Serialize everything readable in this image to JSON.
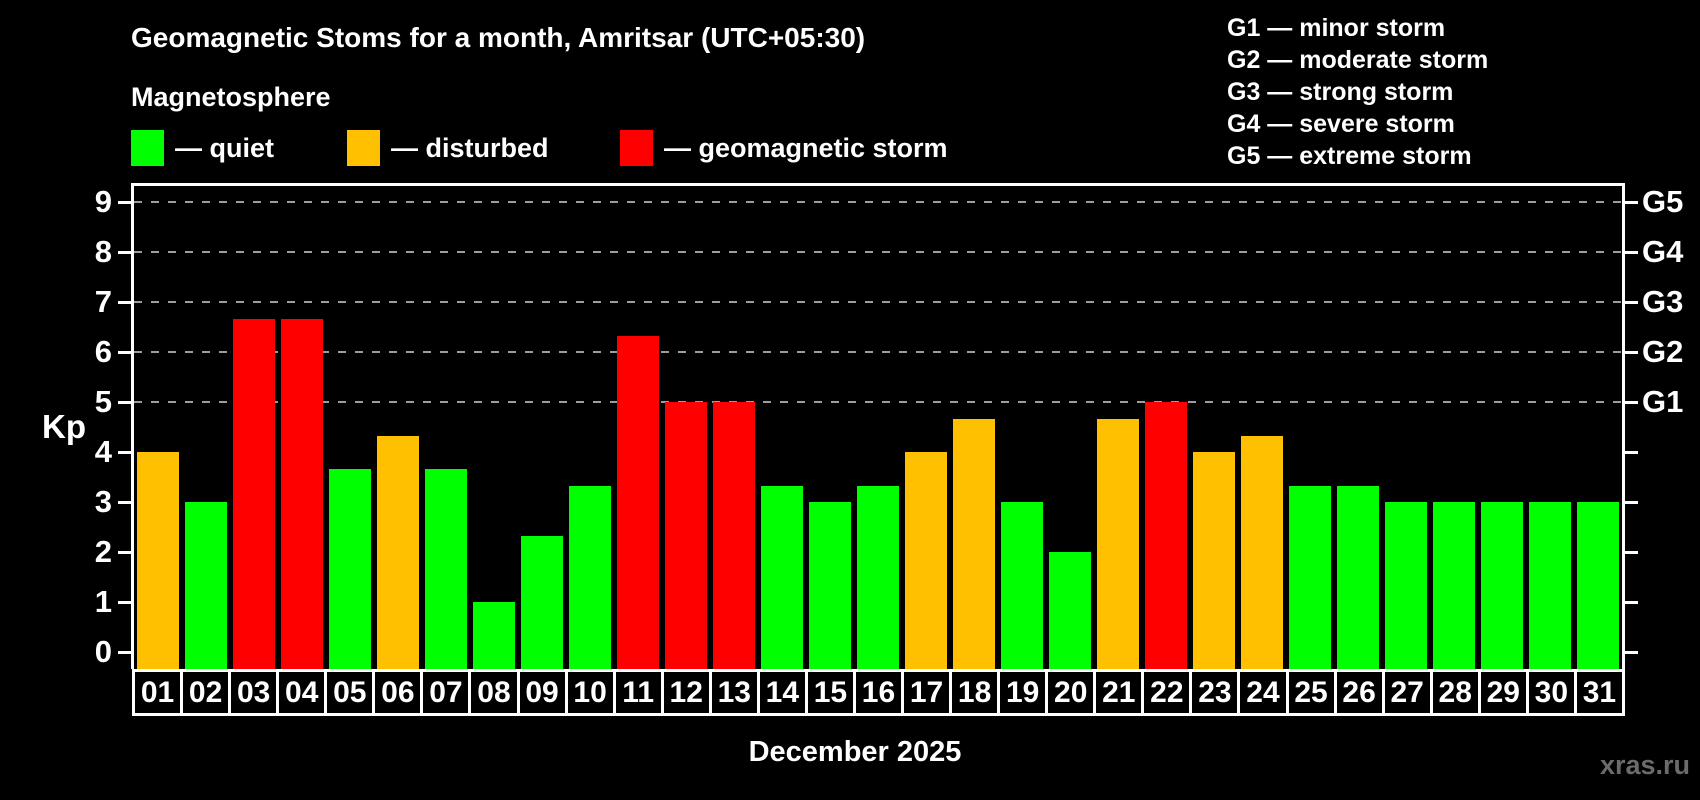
{
  "header": {
    "title": "Geomagnetic Stoms for a month, Amritsar (UTC+05:30)",
    "subtitle": "Magnetosphere"
  },
  "legend": {
    "items": [
      {
        "key": "quiet",
        "label": "— quiet",
        "color": "#00ff00"
      },
      {
        "key": "disturbed",
        "label": "— disturbed",
        "color": "#ffc000"
      },
      {
        "key": "storm",
        "label": "— geomagnetic storm",
        "color": "#ff0000"
      }
    ]
  },
  "g_legend": {
    "items": [
      "G1 — minor storm",
      "G2 — moderate storm",
      "G3 — strong storm",
      "G4 — severe storm",
      "G5 — extreme storm"
    ]
  },
  "y_axis": {
    "title": "Kp",
    "ticks": [
      0,
      1,
      2,
      3,
      4,
      5,
      6,
      7,
      8,
      9
    ]
  },
  "right_axis": {
    "ticks": [
      0,
      1,
      2,
      3,
      4,
      5,
      6,
      7,
      8,
      9
    ],
    "labels": [
      {
        "kp": 5,
        "label": "G1"
      },
      {
        "kp": 6,
        "label": "G2"
      },
      {
        "kp": 7,
        "label": "G3"
      },
      {
        "kp": 8,
        "label": "G4"
      },
      {
        "kp": 9,
        "label": "G5"
      }
    ]
  },
  "x_axis": {
    "title": "December 2025"
  },
  "watermark": "xras.ru",
  "chart_data": {
    "type": "bar",
    "title": "Geomagnetic Stoms for a month, Amritsar (UTC+05:30)",
    "xlabel": "December 2025",
    "ylabel": "Kp",
    "ylim": [
      0,
      9
    ],
    "grid": "dashed horizontal at Kp 5-9 only",
    "gridlines_at": [
      5,
      6,
      7,
      8,
      9
    ],
    "legend_position": "top-left",
    "background_color": "#000000",
    "categories": [
      "01",
      "02",
      "03",
      "04",
      "05",
      "06",
      "07",
      "08",
      "09",
      "10",
      "11",
      "12",
      "13",
      "14",
      "15",
      "16",
      "17",
      "18",
      "19",
      "20",
      "21",
      "22",
      "23",
      "24",
      "25",
      "26",
      "27",
      "28",
      "29",
      "30",
      "31"
    ],
    "values": [
      4,
      3,
      6.67,
      6.67,
      3.67,
      4.33,
      3.67,
      1,
      2.33,
      3.33,
      6.33,
      5,
      5,
      3.33,
      3,
      3.33,
      4,
      4.67,
      3,
      2,
      4.67,
      5,
      4,
      4.33,
      3.33,
      3.33,
      3,
      3,
      3,
      3,
      3
    ],
    "statuses": [
      "disturbed",
      "quiet",
      "storm",
      "storm",
      "quiet",
      "disturbed",
      "quiet",
      "quiet",
      "quiet",
      "quiet",
      "storm",
      "storm",
      "storm",
      "quiet",
      "quiet",
      "quiet",
      "disturbed",
      "disturbed",
      "quiet",
      "quiet",
      "disturbed",
      "storm",
      "disturbed",
      "disturbed",
      "quiet",
      "quiet",
      "quiet",
      "quiet",
      "quiet",
      "quiet",
      "quiet"
    ],
    "status_colors": {
      "quiet": "#00ff00",
      "disturbed": "#ffc000",
      "storm": "#ff0000"
    }
  }
}
